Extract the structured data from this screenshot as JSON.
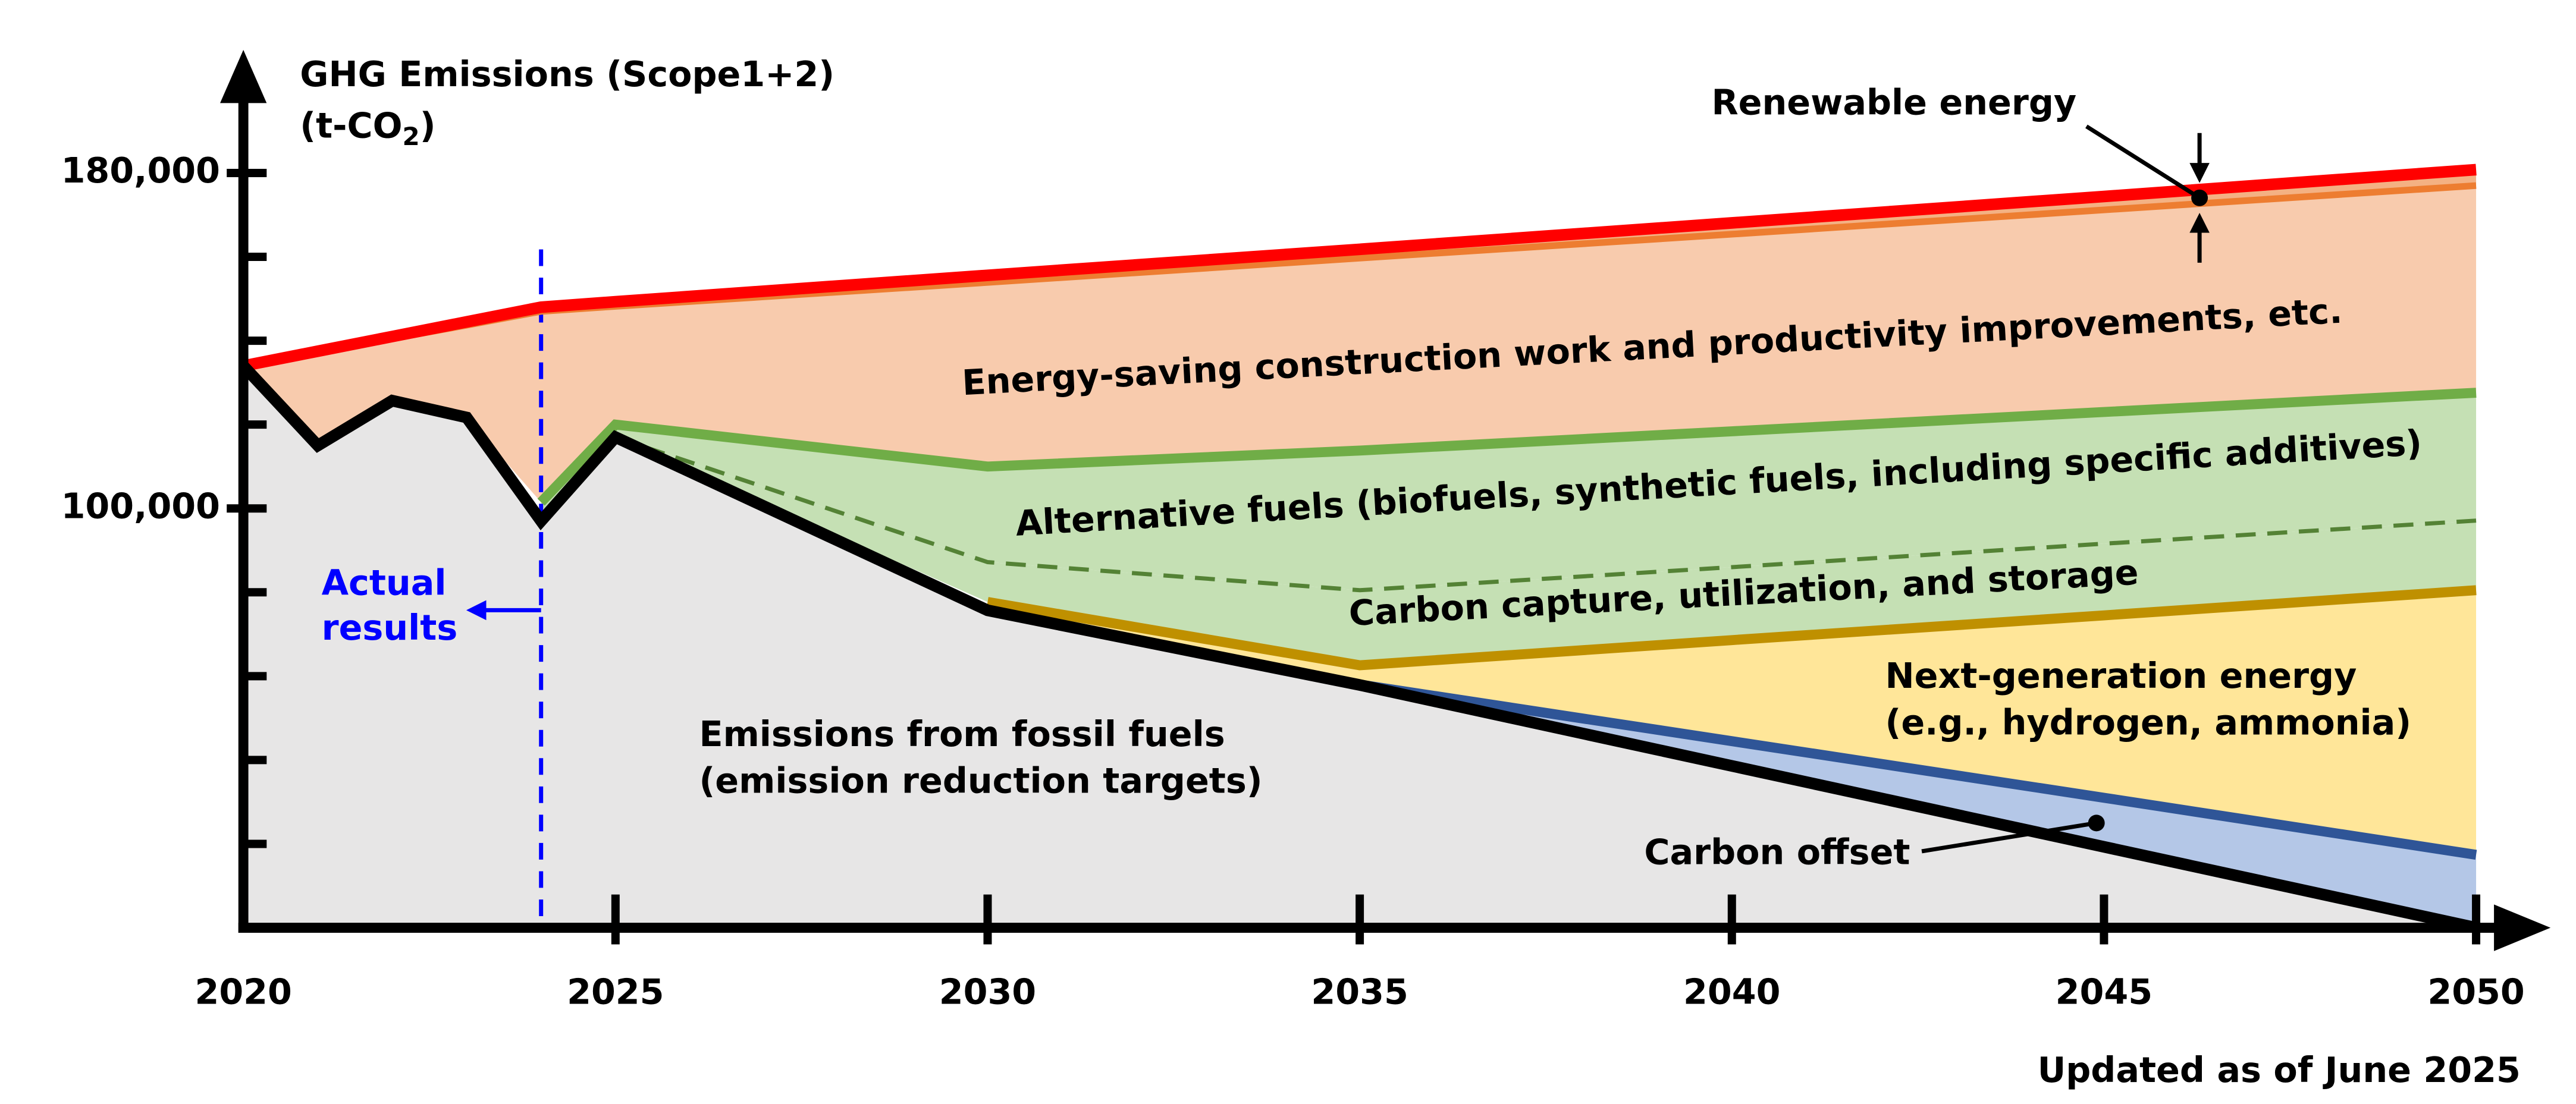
{
  "chart_data": {
    "type": "area",
    "ylabel": {
      "line1": "GHG Emissions (Scope1+2)",
      "unit": [
        "(t-CO",
        "2",
        ")"
      ]
    },
    "x": [
      2020,
      2021,
      2022,
      2023,
      2024,
      2025,
      2030,
      2035,
      2040,
      2045,
      2050
    ],
    "xlim": [
      2020,
      2051
    ],
    "xticks": [
      2020,
      2025,
      2030,
      2035,
      2040,
      2045,
      2050
    ],
    "ylim": [
      0,
      205000
    ],
    "yticks": [
      {
        "value": 100000,
        "label": "100,000"
      },
      {
        "value": 180000,
        "label": "180,000"
      }
    ],
    "yminor_ticks": [
      20000,
      40000,
      60000,
      80000,
      120000,
      140000,
      160000
    ],
    "series": [
      {
        "name": [
          "Emissions from fossil fuels",
          "(emission reduction targets)"
        ],
        "color": "#000000",
        "fill": "#e7e6e6",
        "values": [
          134000,
          115000,
          125700,
          121700,
          97000,
          117000,
          75700,
          57900,
          38600,
          19300,
          0
        ]
      },
      {
        "name": [
          "Carbon offset"
        ],
        "color": "#2f5597",
        "fill": "#b4c7e7",
        "values": [
          null,
          null,
          null,
          null,
          null,
          null,
          null,
          58000,
          44500,
          31000,
          17400
        ]
      },
      {
        "name": [
          "Next-generation energy",
          "(e.g., hydrogen, ammonia)"
        ],
        "color": "#bf9000",
        "fill": "#ffe699",
        "values": [
          null,
          null,
          null,
          null,
          null,
          null,
          77700,
          62600,
          68600,
          74500,
          80500
        ]
      },
      {
        "name": [
          "Carbon capture, utilization, and storage"
        ],
        "color": "#548235",
        "fill": "#c5e0b4",
        "line_style": "dashed",
        "values": [
          null,
          null,
          null,
          null,
          null,
          117000,
          87200,
          80500,
          86000,
          91600,
          97100
        ]
      },
      {
        "name": [
          "Alternative fuels (biofuels, synthetic fuels, including specific additives)"
        ],
        "color": "#70ad47",
        "fill": "#c5e0b4",
        "values": [
          null,
          null,
          null,
          null,
          101500,
          120000,
          110000,
          113800,
          118400,
          123000,
          127600
        ]
      },
      {
        "name": [
          "Energy-saving construction work and productivity improvements, etc."
        ],
        "color": "#ed7d31",
        "fill": "#f8cbad",
        "values": [
          134000,
          137200,
          140500,
          143700,
          147000,
          148200,
          153900,
          159700,
          165400,
          171200,
          177000
        ]
      },
      {
        "name": [
          "Renewable energy"
        ],
        "color": "#ff0000",
        "fill": "#f4b183",
        "values": [
          134000,
          137500,
          141000,
          144500,
          148000,
          149300,
          155600,
          161800,
          168100,
          174400,
          180800
        ]
      }
    ],
    "actual_results": {
      "x": 2024,
      "label": [
        "Actual",
        "results"
      ],
      "color": "#0000ff"
    },
    "footnote": "Updated as of June 2025"
  }
}
